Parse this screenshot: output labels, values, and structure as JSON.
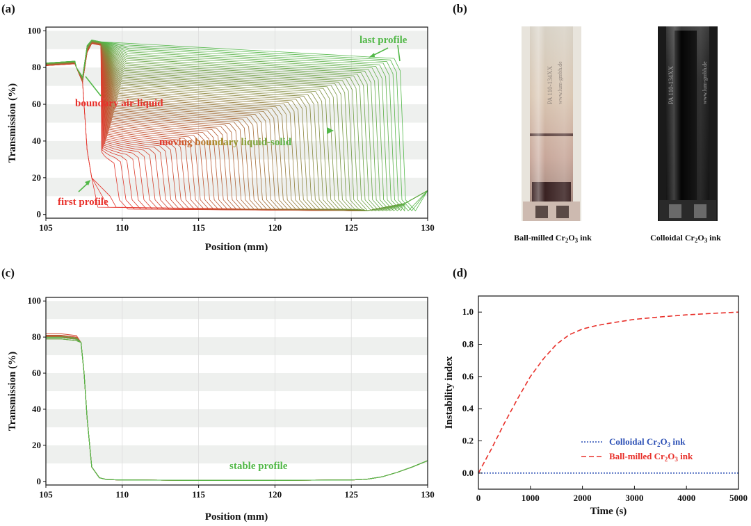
{
  "colors": {
    "red": "#e8302a",
    "green": "#52b848",
    "brown": "#9a7a2a",
    "blue": "#2b4fb5",
    "band": "#eef0ee"
  },
  "panels": {
    "a": "(a)",
    "b": "(b)",
    "c": "(c)",
    "d": "(d)"
  },
  "chart_data": [
    {
      "id": "a",
      "type": "line",
      "title": "",
      "xlabel": "Position (mm)",
      "ylabel": "Transmission (%)",
      "xlim": [
        105,
        130
      ],
      "ylim": [
        -2,
        102
      ],
      "xticks": [
        105,
        110,
        115,
        120,
        125,
        130
      ],
      "yticks": [
        0,
        20,
        40,
        60,
        80,
        100
      ],
      "profiles": {
        "count": 70,
        "description": "Transmission profiles over time, color goes red (first) to green (last)",
        "first_boundary_x": 107.8,
        "last_boundary_x": 128.2,
        "air_liquid_x": 107.7,
        "air_region_value": 82,
        "bottom_value": 2
      },
      "annotations": [
        {
          "text": "last profile",
          "color": "green"
        },
        {
          "text": "boundary air-liquid",
          "color": "red"
        },
        {
          "text": "moving boundary liquid-solid",
          "color": "gradient"
        },
        {
          "text": "first profile",
          "color": "red"
        }
      ]
    },
    {
      "id": "b",
      "type": "image",
      "captions": [
        {
          "pre": "Ball-milled Cr",
          "sub1": "2",
          "mid": "O",
          "sub2": "3",
          "post": " ink"
        },
        {
          "pre": "Colloidal Cr",
          "sub1": "2",
          "mid": "O",
          "sub2": "3",
          "post": " ink"
        }
      ],
      "vial_labels": [
        "PA 110-134XX",
        "www.lum-gmbh.de"
      ]
    },
    {
      "id": "c",
      "type": "line",
      "title": "",
      "xlabel": "Position (mm)",
      "ylabel": "Transmission (%)",
      "xlim": [
        105,
        130
      ],
      "ylim": [
        -2,
        102
      ],
      "xticks": [
        105,
        110,
        115,
        120,
        125,
        130
      ],
      "yticks": [
        0,
        20,
        40,
        60,
        80,
        100
      ],
      "series": [
        {
          "name": "stable profile",
          "x": [
            105,
            106,
            107,
            107.3,
            107.5,
            107.7,
            108,
            108.5,
            109,
            110,
            115,
            120,
            125,
            126,
            127,
            128,
            129,
            130
          ],
          "y": [
            79,
            79,
            78,
            77,
            60,
            35,
            8,
            2,
            1,
            0.8,
            0.6,
            0.6,
            0.8,
            1.2,
            2.5,
            5,
            8,
            11.5
          ]
        }
      ],
      "annotations": [
        {
          "text": "stable profile",
          "color": "green"
        }
      ]
    },
    {
      "id": "d",
      "type": "line",
      "title": "",
      "xlabel": "Time (s)",
      "ylabel": "Instability index",
      "xlim": [
        0,
        5000
      ],
      "ylim": [
        -0.1,
        1.1
      ],
      "xticks": [
        0,
        1000,
        2000,
        3000,
        4000,
        5000
      ],
      "yticks": [
        0.0,
        0.2,
        0.4,
        0.6,
        0.8,
        1.0
      ],
      "series": [
        {
          "name": "Colloidal Cr2O3 ink",
          "legend": {
            "pre": "Colloidal Cr",
            "sub1": "2",
            "mid": "O",
            "sub2": "3",
            "post": " ink"
          },
          "style": "dotted",
          "color": "blue",
          "x": [
            0,
            5000
          ],
          "y": [
            0,
            0
          ]
        },
        {
          "name": "Ball-milled Cr2O3 ink",
          "legend": {
            "pre": "Ball-milled Cr",
            "sub1": "2",
            "mid": "O",
            "sub2": "3",
            "post": " ink"
          },
          "style": "dashed",
          "color": "red",
          "x": [
            0,
            250,
            500,
            750,
            1000,
            1250,
            1500,
            1750,
            2000,
            2250,
            2500,
            3000,
            3500,
            4000,
            4500,
            5000
          ],
          "y": [
            0,
            0.15,
            0.31,
            0.46,
            0.6,
            0.71,
            0.8,
            0.86,
            0.895,
            0.915,
            0.93,
            0.955,
            0.97,
            0.983,
            0.992,
            1.0
          ]
        }
      ],
      "legend_position": "bottom-center"
    }
  ]
}
